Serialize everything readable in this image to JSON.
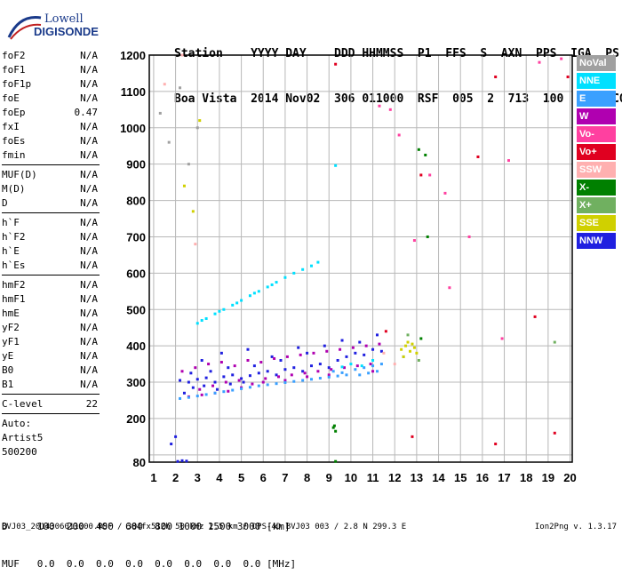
{
  "logo": {
    "line1": "Lowell",
    "line2": "DIGISONDE"
  },
  "header": {
    "row1": "Station    YYYY DAY    DDD HHMMSS  P1  FFS  S  AXN  PPS  IGA  PS",
    "row2": "Boa Vista  2014 Nov02  306 011000  RSF  005  2  713  100  03+  C0"
  },
  "params": {
    "group1": [
      {
        "name": "foF2",
        "value": "N/A"
      },
      {
        "name": "foF1",
        "value": "N/A"
      },
      {
        "name": "foF1p",
        "value": "N/A"
      },
      {
        "name": "foE",
        "value": "N/A"
      },
      {
        "name": "foEp",
        "value": "0.47"
      },
      {
        "name": "fxI",
        "value": "N/A"
      },
      {
        "name": "foEs",
        "value": "N/A"
      },
      {
        "name": "fmin",
        "value": "N/A"
      }
    ],
    "group2": [
      {
        "name": "MUF(D)",
        "value": "N/A"
      },
      {
        "name": "M(D)",
        "value": "N/A"
      },
      {
        "name": "D",
        "value": "N/A"
      }
    ],
    "group3": [
      {
        "name": "h`F",
        "value": "N/A"
      },
      {
        "name": "h`F2",
        "value": "N/A"
      },
      {
        "name": "h`E",
        "value": "N/A"
      },
      {
        "name": "h`Es",
        "value": "N/A"
      }
    ],
    "group4": [
      {
        "name": "hmF2",
        "value": "N/A"
      },
      {
        "name": "hmF1",
        "value": "N/A"
      },
      {
        "name": "hmE",
        "value": "N/A"
      },
      {
        "name": "yF2",
        "value": "N/A"
      },
      {
        "name": "yF1",
        "value": "N/A"
      },
      {
        "name": "yE",
        "value": "N/A"
      },
      {
        "name": "B0",
        "value": "N/A"
      },
      {
        "name": "B1",
        "value": "N/A"
      }
    ],
    "clevel": {
      "name": "C-level",
      "value": "22"
    },
    "auto_lines": [
      "Auto:",
      "Artist5",
      "500200"
    ]
  },
  "legend": [
    {
      "label": "NoVal",
      "color": "#a0a0a0"
    },
    {
      "label": "NNE",
      "color": "#00e0ff"
    },
    {
      "label": "E",
      "color": "#3aa0ff"
    },
    {
      "label": "W",
      "color": "#b000b0"
    },
    {
      "label": "Vo-",
      "color": "#ff40a0"
    },
    {
      "label": "Vo+",
      "color": "#e00020"
    },
    {
      "label": "SSW",
      "color": "#ffb0b0"
    },
    {
      "label": "X-",
      "color": "#008000"
    },
    {
      "label": "X+",
      "color": "#70b060"
    },
    {
      "label": "SSE",
      "color": "#d0d000"
    },
    {
      "label": "NNW",
      "color": "#2020e0"
    }
  ],
  "footer": {
    "d_row": "D     100  200  400  600  800 1000 1500 3000 [km]",
    "muf_row": "MUF   0.0  0.0  0.0  0.0  0.0  0.0  0.0  0.0 [MHz]",
    "file_line": "BVJ03_2014306011000.RSF / 384fx512h 50 kHz 2.5 km / DPS-4D BVJ03 003 / 2.8 N 299.3 E",
    "version": "Ion2Png v. 1.3.17"
  },
  "chart_data": {
    "type": "scatter",
    "title": "",
    "xlabel": "",
    "ylabel": "",
    "xlim": [
      0.8,
      20.1
    ],
    "ylim": [
      80,
      1200
    ],
    "x_ticks": [
      1,
      2,
      3,
      4,
      5,
      6,
      7,
      8,
      9,
      10,
      11,
      12,
      13,
      14,
      15,
      16,
      17,
      18,
      19,
      20
    ],
    "y_ticks": [
      80,
      100,
      200,
      300,
      400,
      500,
      600,
      700,
      800,
      900,
      1000,
      1100,
      1200
    ],
    "y_tick_labels": [
      "80",
      "",
      "200",
      "300",
      "400",
      "500",
      "600",
      "700",
      "800",
      "900",
      "1000",
      "1100",
      "1200"
    ],
    "grid": true,
    "series": [
      {
        "name": "NNW",
        "color": "#2020e0",
        "points": [
          [
            2.2,
            305
          ],
          [
            2.6,
            300
          ],
          [
            3.0,
            308
          ],
          [
            3.4,
            312
          ],
          [
            3.8,
            300
          ],
          [
            4.2,
            315
          ],
          [
            4.6,
            320
          ],
          [
            5.0,
            310
          ],
          [
            5.4,
            318
          ],
          [
            5.8,
            325
          ],
          [
            6.2,
            330
          ],
          [
            6.6,
            320
          ],
          [
            7.0,
            335
          ],
          [
            7.4,
            340
          ],
          [
            7.8,
            330
          ],
          [
            8.2,
            345
          ],
          [
            8.6,
            350
          ],
          [
            9.0,
            340
          ],
          [
            9.4,
            360
          ],
          [
            9.8,
            370
          ],
          [
            10.2,
            380
          ],
          [
            10.6,
            375
          ],
          [
            11.0,
            390
          ],
          [
            11.4,
            385
          ],
          [
            2.4,
            270
          ],
          [
            2.8,
            285
          ],
          [
            3.3,
            290
          ],
          [
            3.9,
            280
          ],
          [
            4.5,
            295
          ],
          [
            5.1,
            300
          ],
          [
            2.1,
            82
          ],
          [
            2.3,
            84
          ],
          [
            2.5,
            83
          ],
          [
            1.8,
            130
          ],
          [
            2.0,
            150
          ],
          [
            3.2,
            360
          ],
          [
            4.1,
            380
          ],
          [
            5.3,
            390
          ],
          [
            6.4,
            370
          ],
          [
            7.6,
            395
          ],
          [
            8.8,
            400
          ],
          [
            10.4,
            410
          ],
          [
            11.2,
            430
          ],
          [
            9.6,
            415
          ],
          [
            8.0,
            380
          ],
          [
            6.8,
            360
          ],
          [
            5.6,
            345
          ],
          [
            4.4,
            340
          ],
          [
            3.6,
            330
          ],
          [
            2.7,
            325
          ]
        ]
      },
      {
        "name": "W",
        "color": "#b000b0",
        "points": [
          [
            2.3,
            330
          ],
          [
            2.9,
            340
          ],
          [
            3.5,
            350
          ],
          [
            4.1,
            355
          ],
          [
            4.7,
            345
          ],
          [
            5.3,
            360
          ],
          [
            5.9,
            355
          ],
          [
            6.5,
            365
          ],
          [
            7.1,
            370
          ],
          [
            7.7,
            375
          ],
          [
            8.3,
            380
          ],
          [
            8.9,
            385
          ],
          [
            9.5,
            390
          ],
          [
            10.1,
            395
          ],
          [
            10.7,
            400
          ],
          [
            11.3,
            405
          ],
          [
            3.1,
            280
          ],
          [
            3.7,
            290
          ],
          [
            4.3,
            300
          ],
          [
            4.9,
            305
          ],
          [
            5.5,
            295
          ],
          [
            6.1,
            310
          ],
          [
            6.7,
            315
          ],
          [
            7.3,
            320
          ],
          [
            7.9,
            325
          ],
          [
            8.5,
            330
          ],
          [
            9.1,
            335
          ],
          [
            9.7,
            340
          ],
          [
            10.3,
            345
          ],
          [
            10.9,
            350
          ],
          [
            2.6,
            260
          ],
          [
            3.2,
            265
          ],
          [
            3.8,
            270
          ],
          [
            4.4,
            275
          ],
          [
            5.0,
            285
          ],
          [
            6.0,
            300
          ],
          [
            7.0,
            305
          ],
          [
            8.0,
            315
          ],
          [
            9.0,
            320
          ],
          [
            11.0,
            330
          ]
        ]
      },
      {
        "name": "E",
        "color": "#3aa0ff",
        "points": [
          [
            2.2,
            255
          ],
          [
            2.6,
            258
          ],
          [
            3.0,
            262
          ],
          [
            3.4,
            266
          ],
          [
            3.8,
            270
          ],
          [
            4.2,
            274
          ],
          [
            4.6,
            278
          ],
          [
            5.0,
            282
          ],
          [
            5.4,
            286
          ],
          [
            5.8,
            290
          ],
          [
            6.2,
            293
          ],
          [
            6.6,
            296
          ],
          [
            7.0,
            299
          ],
          [
            7.4,
            302
          ],
          [
            7.8,
            305
          ],
          [
            8.2,
            308
          ],
          [
            8.6,
            311
          ],
          [
            9.0,
            314
          ],
          [
            9.4,
            317
          ],
          [
            9.8,
            320
          ],
          [
            10.2,
            335
          ],
          [
            10.6,
            340
          ],
          [
            11.0,
            345
          ],
          [
            11.4,
            350
          ],
          [
            10.4,
            320
          ],
          [
            10.8,
            325
          ],
          [
            11.2,
            330
          ],
          [
            9.2,
            330
          ],
          [
            9.6,
            326
          ],
          [
            12.4,
            370
          ]
        ]
      },
      {
        "name": "NNE",
        "color": "#00e0ff",
        "points": [
          [
            3.0,
            462
          ],
          [
            3.4,
            475
          ],
          [
            3.8,
            488
          ],
          [
            4.2,
            500
          ],
          [
            4.6,
            512
          ],
          [
            5.0,
            525
          ],
          [
            5.4,
            538
          ],
          [
            5.8,
            550
          ],
          [
            6.2,
            562
          ],
          [
            6.6,
            575
          ],
          [
            7.0,
            588
          ],
          [
            7.4,
            600
          ],
          [
            7.8,
            610
          ],
          [
            8.2,
            620
          ],
          [
            8.5,
            630
          ],
          [
            3.2,
            470
          ],
          [
            4.0,
            495
          ],
          [
            4.8,
            518
          ],
          [
            5.6,
            545
          ],
          [
            6.4,
            568
          ],
          [
            9.3,
            896
          ],
          [
            10.0,
            350
          ],
          [
            10.5,
            345
          ],
          [
            11.0,
            360
          ],
          [
            9.6,
            342
          ]
        ]
      },
      {
        "name": "SSE",
        "color": "#d0d000",
        "points": [
          [
            12.3,
            390
          ],
          [
            12.5,
            400
          ],
          [
            12.7,
            385
          ],
          [
            12.9,
            395
          ],
          [
            12.4,
            370
          ],
          [
            12.6,
            410
          ],
          [
            12.8,
            405
          ],
          [
            13.0,
            380
          ],
          [
            2.8,
            770
          ],
          [
            3.1,
            1020
          ],
          [
            2.4,
            840
          ]
        ]
      },
      {
        "name": "Vo+",
        "color": "#e00020",
        "points": [
          [
            19.9,
            1140
          ],
          [
            9.3,
            1175
          ],
          [
            16.6,
            1140
          ],
          [
            13.2,
            870
          ],
          [
            15.8,
            920
          ],
          [
            18.4,
            480
          ],
          [
            11.6,
            440
          ],
          [
            12.8,
            150
          ],
          [
            16.6,
            130
          ],
          [
            19.3,
            160
          ]
        ]
      },
      {
        "name": "Vo-",
        "color": "#ff40a0",
        "points": [
          [
            11.8,
            1050
          ],
          [
            12.2,
            980
          ],
          [
            13.6,
            870
          ],
          [
            14.5,
            560
          ],
          [
            15.4,
            700
          ],
          [
            17.2,
            910
          ],
          [
            18.6,
            1180
          ],
          [
            19.6,
            1190
          ],
          [
            12.9,
            690
          ],
          [
            14.3,
            820
          ],
          [
            16.9,
            420
          ],
          [
            11.3,
            1060
          ]
        ]
      },
      {
        "name": "X-",
        "color": "#008000",
        "points": [
          [
            9.2,
            175
          ],
          [
            9.25,
            180
          ],
          [
            9.3,
            165
          ],
          [
            13.4,
            925
          ],
          [
            13.1,
            940
          ],
          [
            9.3,
            82
          ],
          [
            13.5,
            700
          ],
          [
            13.2,
            420
          ]
        ]
      },
      {
        "name": "X+",
        "color": "#70b060",
        "points": [
          [
            12.6,
            430
          ],
          [
            13.1,
            360
          ],
          [
            19.3,
            410
          ]
        ]
      },
      {
        "name": "SSW",
        "color": "#ffb0b0",
        "points": [
          [
            2.9,
            680
          ],
          [
            11.5,
            380
          ],
          [
            12.0,
            350
          ],
          [
            1.5,
            1120
          ],
          [
            2.3,
            1200
          ]
        ]
      },
      {
        "name": "NoVal",
        "color": "#a0a0a0",
        "points": [
          [
            1.3,
            1040
          ],
          [
            2.2,
            1110
          ],
          [
            1.7,
            960
          ],
          [
            2.6,
            900
          ],
          [
            3.0,
            1000
          ]
        ]
      }
    ]
  }
}
